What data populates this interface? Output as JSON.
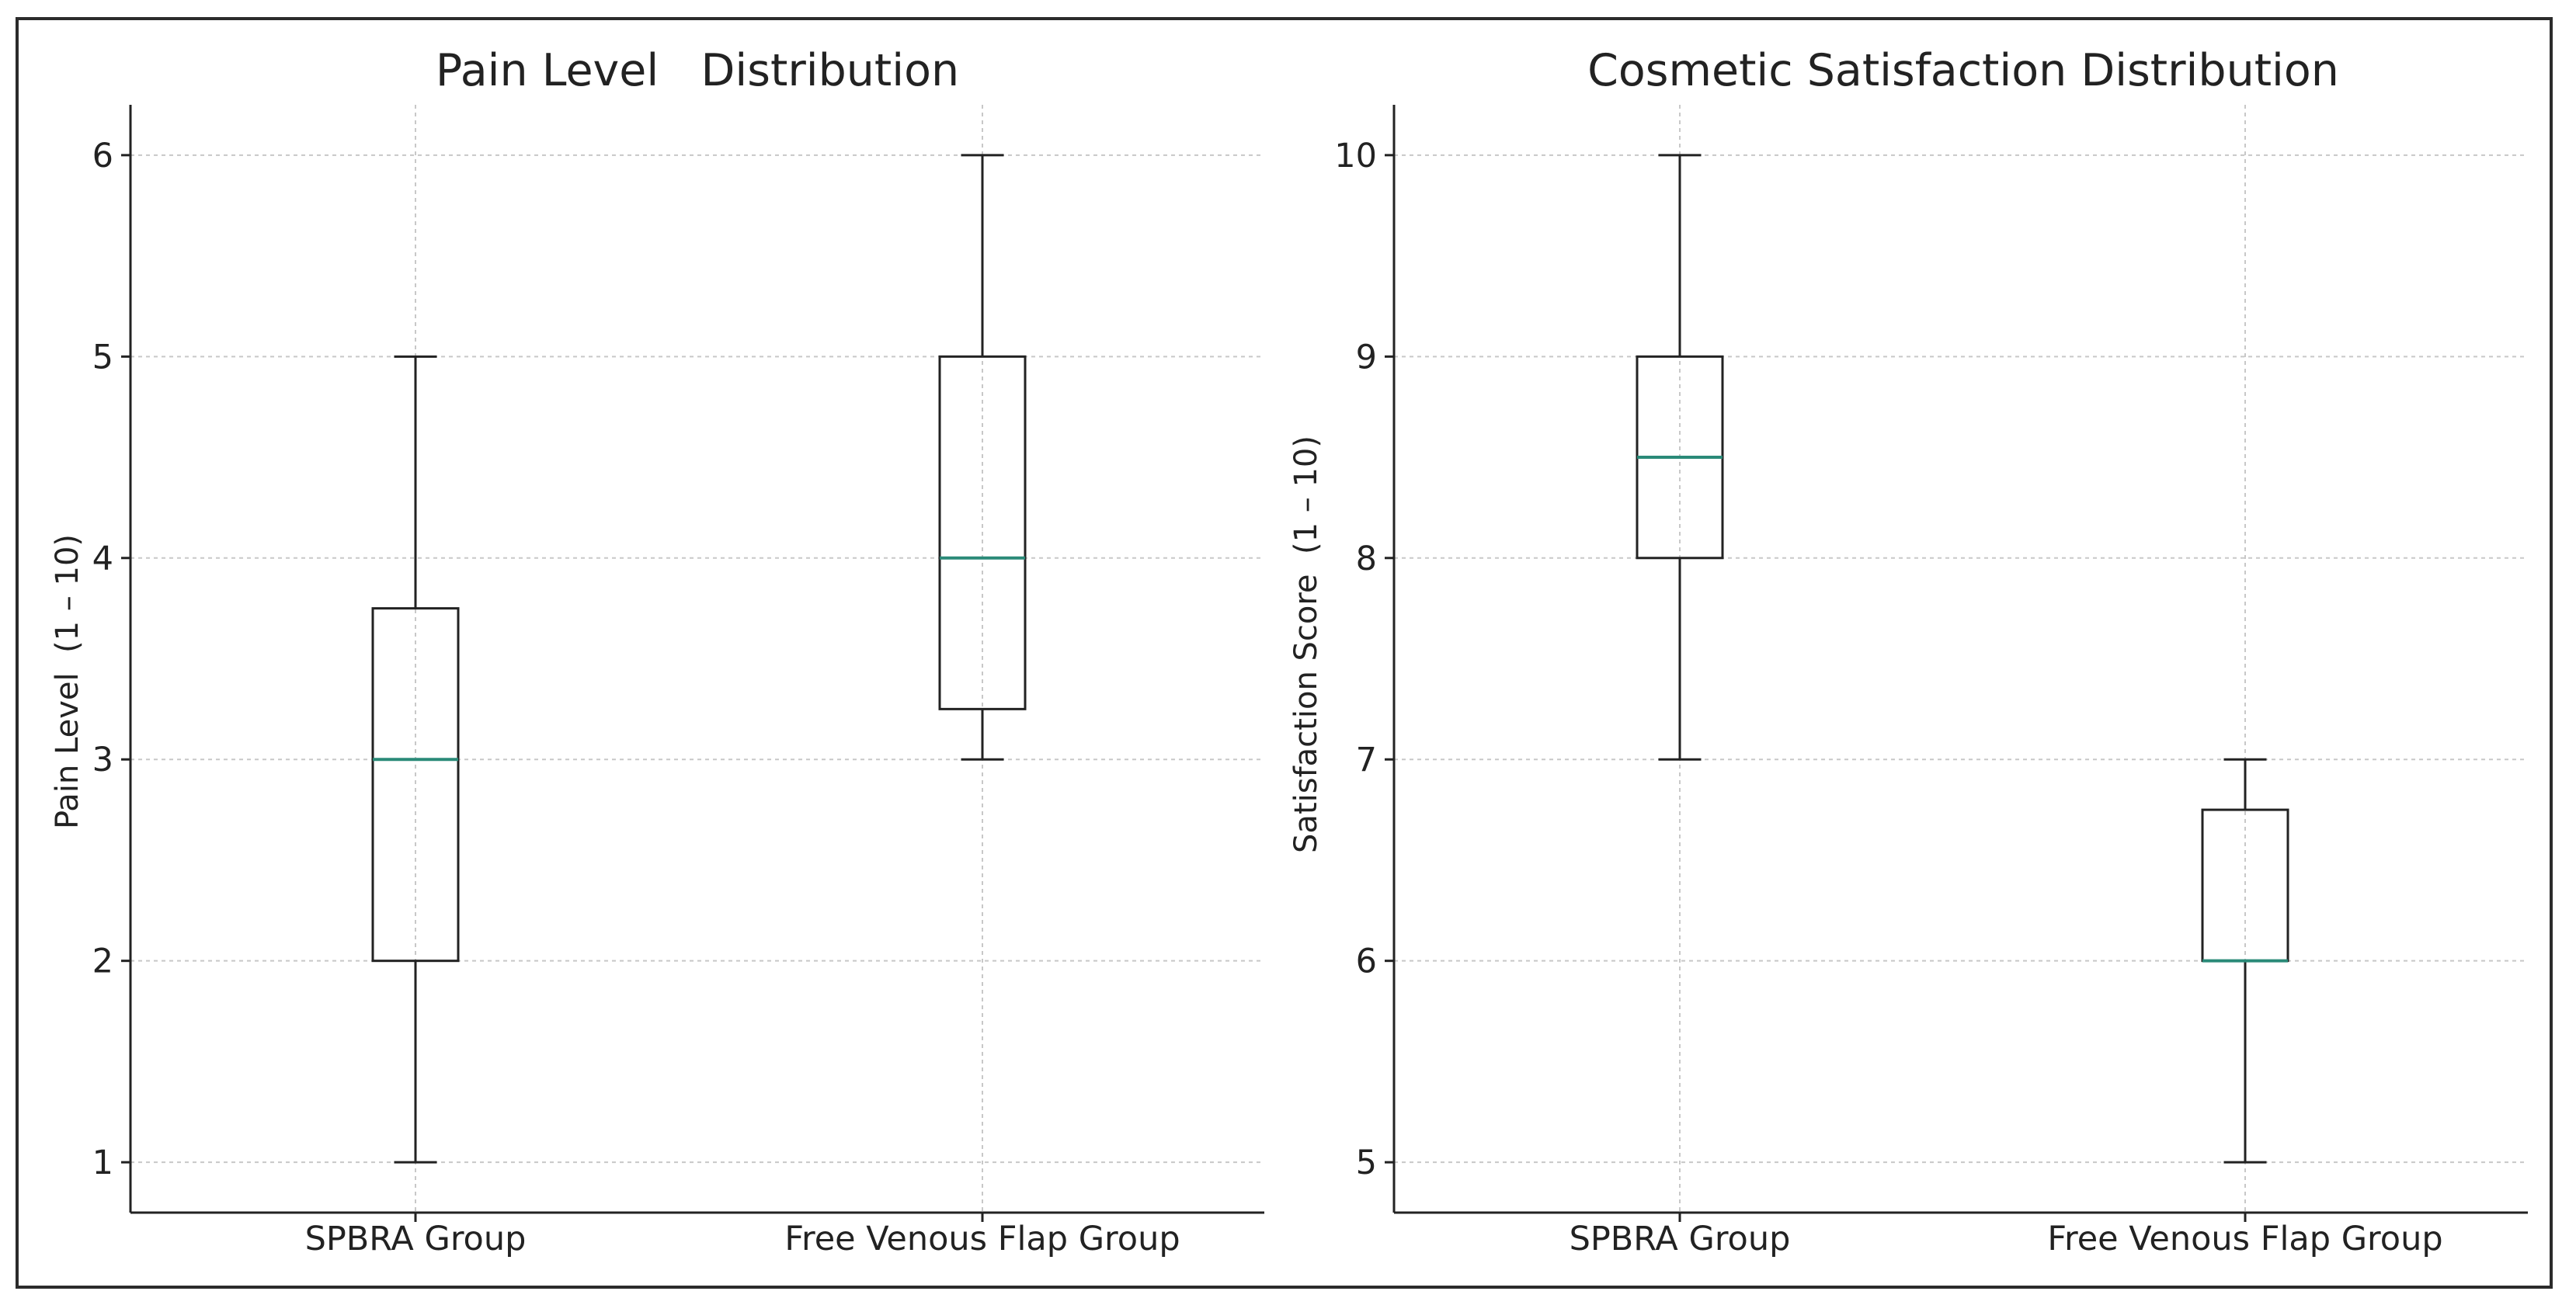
{
  "chart_data": [
    {
      "type": "box",
      "title": "Pain Level   Distribution",
      "xlabel": "",
      "ylabel": "Pain Level  (1 – 10)",
      "ylim": [
        0.75,
        6.25
      ],
      "yticks": [
        1,
        2,
        3,
        4,
        5,
        6
      ],
      "grid": true,
      "categories": [
        "SPBRA Group",
        "Free Venous Flap Group"
      ],
      "boxes": [
        {
          "name": "SPBRA Group",
          "min": 1,
          "q1": 2,
          "median": 3,
          "q3": 3.75,
          "max": 5
        },
        {
          "name": "Free Venous Flap Group",
          "min": 3,
          "q1": 3.25,
          "median": 4,
          "q3": 5,
          "max": 6
        }
      ]
    },
    {
      "type": "box",
      "title": "Cosmetic Satisfaction Distribution",
      "xlabel": "",
      "ylabel": "Satisfaction Score  (1 – 10)",
      "ylim": [
        4.75,
        10.25
      ],
      "yticks": [
        5,
        6,
        7,
        8,
        9,
        10
      ],
      "grid": true,
      "categories": [
        "SPBRA Group",
        "Free Venous Flap Group"
      ],
      "boxes": [
        {
          "name": "SPBRA Group",
          "min": 7,
          "q1": 8,
          "median": 8.5,
          "q3": 9,
          "max": 10
        },
        {
          "name": "Free Venous Flap Group",
          "min": 5,
          "q1": 6,
          "median": 6,
          "q3": 6.75,
          "max": 7
        }
      ]
    }
  ],
  "colors": {
    "median": "#2a8a78",
    "box": "#222222",
    "grid": "#c8c8c8",
    "axis": "#222222"
  }
}
